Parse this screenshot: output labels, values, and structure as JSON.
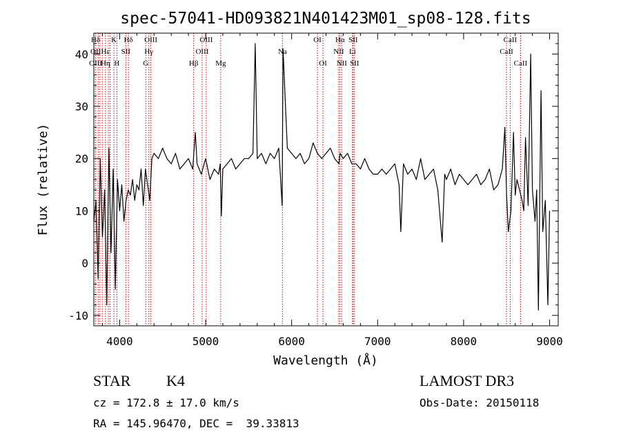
{
  "chart_data": {
    "type": "line",
    "title": "spec-57041-HD093821N401423M01_sp08-128.fits",
    "xlabel": "Wavelength (Å)",
    "ylabel": "Flux (relative)",
    "xlim": [
      3700,
      9100
    ],
    "ylim": [
      -12,
      44
    ],
    "xticks": [
      4000,
      5000,
      6000,
      7000,
      8000,
      9000
    ],
    "yticks": [
      -10,
      0,
      10,
      20,
      30,
      40
    ],
    "grid": false,
    "line_color": "#000000",
    "marker_color": "#cc0000",
    "series": [
      {
        "x": [
          3700,
          3725,
          3750,
          3775,
          3800,
          3825,
          3850,
          3875,
          3900,
          3925,
          3950,
          3975,
          4000,
          4025,
          4050,
          4075,
          4100,
          4125,
          4150,
          4175,
          4200,
          4225,
          4250,
          4275,
          4300,
          4325,
          4350,
          4375,
          4400,
          4450,
          4500,
          4550,
          4600,
          4650,
          4700,
          4750,
          4800,
          4850,
          4880,
          4900,
          4950,
          5000,
          5050,
          5100,
          5150,
          5170,
          5183,
          5200,
          5250,
          5300,
          5350,
          5400,
          5450,
          5500,
          5550,
          5577,
          5600,
          5650,
          5700,
          5750,
          5800,
          5850,
          5890,
          5900,
          5950,
          6000,
          6050,
          6100,
          6150,
          6200,
          6250,
          6300,
          6350,
          6400,
          6450,
          6500,
          6550,
          6563,
          6600,
          6650,
          6700,
          6750,
          6800,
          6850,
          6900,
          6950,
          7000,
          7050,
          7100,
          7150,
          7200,
          7250,
          7270,
          7300,
          7350,
          7400,
          7450,
          7500,
          7550,
          7600,
          7650,
          7700,
          7750,
          7780,
          7800,
          7850,
          7900,
          7950,
          8000,
          8050,
          8100,
          8150,
          8200,
          8250,
          8300,
          8350,
          8400,
          8450,
          8480,
          8500,
          8520,
          8550,
          8580,
          8600,
          8620,
          8650,
          8680,
          8700,
          8720,
          8750,
          8780,
          8800,
          8830,
          8850,
          8870,
          8900,
          8920,
          8950,
          8980,
          9000
        ],
        "y": [
          8,
          12,
          -3,
          20,
          5,
          14,
          -8,
          22,
          2,
          18,
          -5,
          16,
          10,
          15,
          8,
          12,
          14,
          13,
          16,
          12,
          15,
          14,
          18,
          11,
          18,
          15,
          12,
          20,
          21,
          20,
          22,
          20,
          19,
          21,
          18,
          19,
          20,
          18,
          25,
          19,
          17,
          20,
          16,
          18,
          17,
          19,
          9,
          18,
          19,
          20,
          18,
          19,
          20,
          20,
          21,
          42,
          20,
          21,
          19,
          21,
          20,
          22,
          11,
          41,
          22,
          21,
          20,
          21,
          19,
          20,
          23,
          21,
          20,
          21,
          22,
          20,
          19,
          21,
          20,
          21,
          19,
          19,
          18,
          20,
          18,
          17,
          17,
          18,
          17,
          18,
          19,
          15,
          6,
          19,
          17,
          18,
          16,
          20,
          16,
          17,
          18,
          14,
          4,
          17,
          16,
          18,
          15,
          17,
          16,
          15,
          16,
          17,
          15,
          16,
          18,
          14,
          15,
          18,
          26,
          13,
          6,
          10,
          25,
          13,
          16,
          14,
          12,
          10,
          24,
          11,
          40,
          14,
          8,
          14,
          -9,
          33,
          6,
          12,
          -8,
          10
        ]
      }
    ],
    "lines": [
      {
        "x": 3721,
        "top": "Hδ",
        "mid": "OII",
        "bot": "OIII"
      },
      {
        "x": 3750,
        "top": "",
        "mid": "",
        "bot": ""
      },
      {
        "x": 3771,
        "top": "",
        "mid": "",
        "bot": ""
      },
      {
        "x": 3798,
        "top": "",
        "mid": "",
        "bot": ""
      },
      {
        "x": 3835,
        "top": "",
        "mid": "Hε",
        "bot": "Hη"
      },
      {
        "x": 3869,
        "top": "",
        "mid": "",
        "bot": ""
      },
      {
        "x": 3889,
        "top": "",
        "mid": "",
        "bot": ""
      },
      {
        "x": 3934,
        "top": "K",
        "mid": "",
        "bot": ""
      },
      {
        "x": 3968,
        "top": "",
        "mid": "",
        "bot": "H"
      },
      {
        "x": 4072,
        "top": "",
        "mid": "SII",
        "bot": ""
      },
      {
        "x": 4102,
        "top": "Hδ",
        "mid": "",
        "bot": ""
      },
      {
        "x": 4304,
        "top": "",
        "mid": "",
        "bot": "G"
      },
      {
        "x": 4340,
        "top": "",
        "mid": "Hγ",
        "bot": ""
      },
      {
        "x": 4363,
        "top": "OIII",
        "mid": "",
        "bot": ""
      },
      {
        "x": 4861,
        "top": "",
        "mid": "",
        "bot": "Hβ"
      },
      {
        "x": 4959,
        "top": "",
        "mid": "OIII",
        "bot": ""
      },
      {
        "x": 5007,
        "top": "OIII",
        "mid": "",
        "bot": ""
      },
      {
        "x": 5175,
        "top": "",
        "mid": "",
        "bot": "Mg"
      },
      {
        "x": 5893,
        "top": "",
        "mid": "Na",
        "bot": ""
      },
      {
        "x": 6300,
        "top": "OI",
        "mid": "",
        "bot": ""
      },
      {
        "x": 6364,
        "top": "",
        "mid": "",
        "bot": "OI"
      },
      {
        "x": 6548,
        "top": "",
        "mid": "NII",
        "bot": ""
      },
      {
        "x": 6563,
        "top": "Hα",
        "mid": "",
        "bot": ""
      },
      {
        "x": 6583,
        "top": "",
        "mid": "",
        "bot": "NII"
      },
      {
        "x": 6708,
        "top": "",
        "mid": "Li",
        "bot": ""
      },
      {
        "x": 6716,
        "top": "SII",
        "mid": "",
        "bot": ""
      },
      {
        "x": 6731,
        "top": "",
        "mid": "",
        "bot": "SII"
      },
      {
        "x": 8498,
        "top": "",
        "mid": "CaII",
        "bot": ""
      },
      {
        "x": 8542,
        "top": "CaII",
        "mid": "",
        "bot": ""
      },
      {
        "x": 8662,
        "top": "",
        "mid": "",
        "bot": "CaII"
      }
    ]
  },
  "info": {
    "class": "STAR",
    "subclass": "K4",
    "survey": "LAMOST DR3",
    "cz": "cz = 172.8 ± 17.0 km/s",
    "obs_date": "Obs-Date: 20150118",
    "radec": "RA = 145.96470, DEC =  39.33813"
  }
}
